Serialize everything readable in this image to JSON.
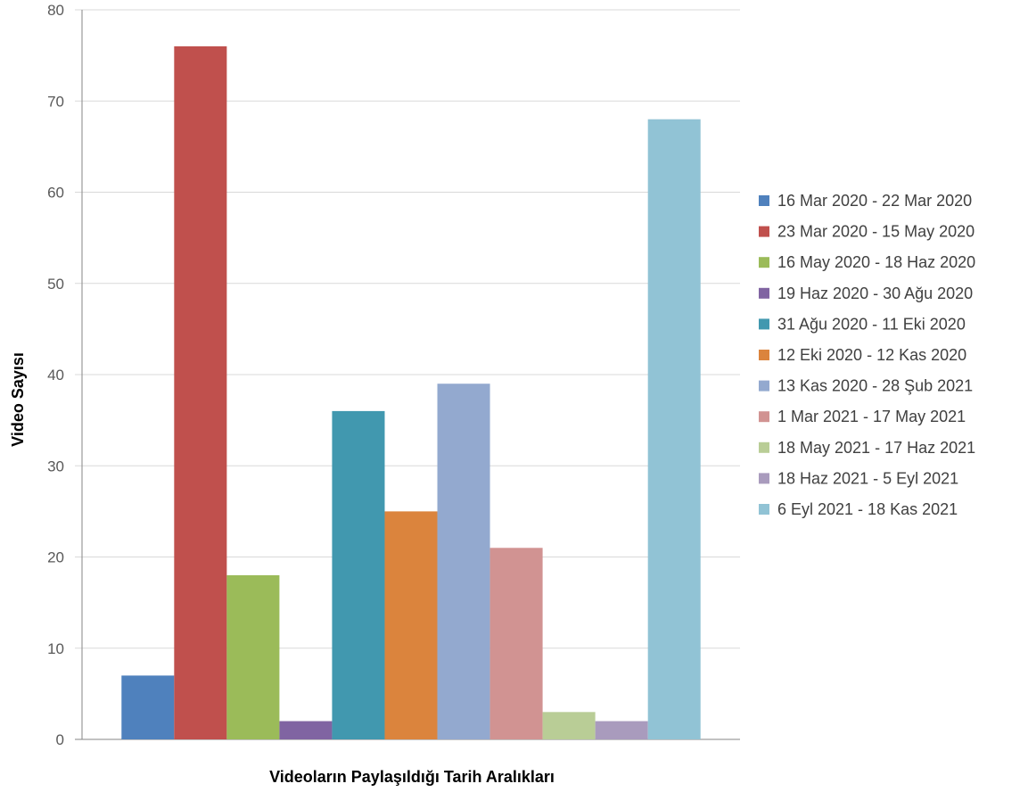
{
  "chart_data": {
    "type": "bar",
    "xlabel": "Videoların Paylaşıldığı Tarih Aralıkları",
    "ylabel": "Video Sayısı",
    "ylim": [
      0,
      80
    ],
    "yticks": [
      0,
      10,
      20,
      30,
      40,
      50,
      60,
      70,
      80
    ],
    "grid": true,
    "legend_position": "right",
    "series": [
      {
        "name": "16 Mar 2020 - 22 Mar 2020",
        "value": 7,
        "color": "#4f81bd"
      },
      {
        "name": "23 Mar 2020 - 15 May 2020",
        "value": 76,
        "color": "#c0504d"
      },
      {
        "name": "16 May 2020 - 18 Haz 2020",
        "value": 18,
        "color": "#9bbb59"
      },
      {
        "name": "19 Haz 2020 - 30 Ağu 2020",
        "value": 2,
        "color": "#8064a2"
      },
      {
        "name": "31 Ağu 2020 - 11 Eki 2020",
        "value": 36,
        "color": "#4198af"
      },
      {
        "name": "12 Eki 2020 - 12 Kas 2020",
        "value": 25,
        "color": "#db843d"
      },
      {
        "name": "13 Kas 2020 - 28 Şub 2021",
        "value": 39,
        "color": "#93a9cf"
      },
      {
        "name": "1 Mar 2021 - 17 May 2021",
        "value": 21,
        "color": "#d19392"
      },
      {
        "name": "18 May 2021 - 17 Haz 2021",
        "value": 3,
        "color": "#b9cd96"
      },
      {
        "name": "18 Haz 2021 - 5 Eyl 2021",
        "value": 2,
        "color": "#a99bbd"
      },
      {
        "name": "6 Eyl 2021 - 18 Kas 2021",
        "value": 68,
        "color": "#91c3d5"
      }
    ]
  }
}
